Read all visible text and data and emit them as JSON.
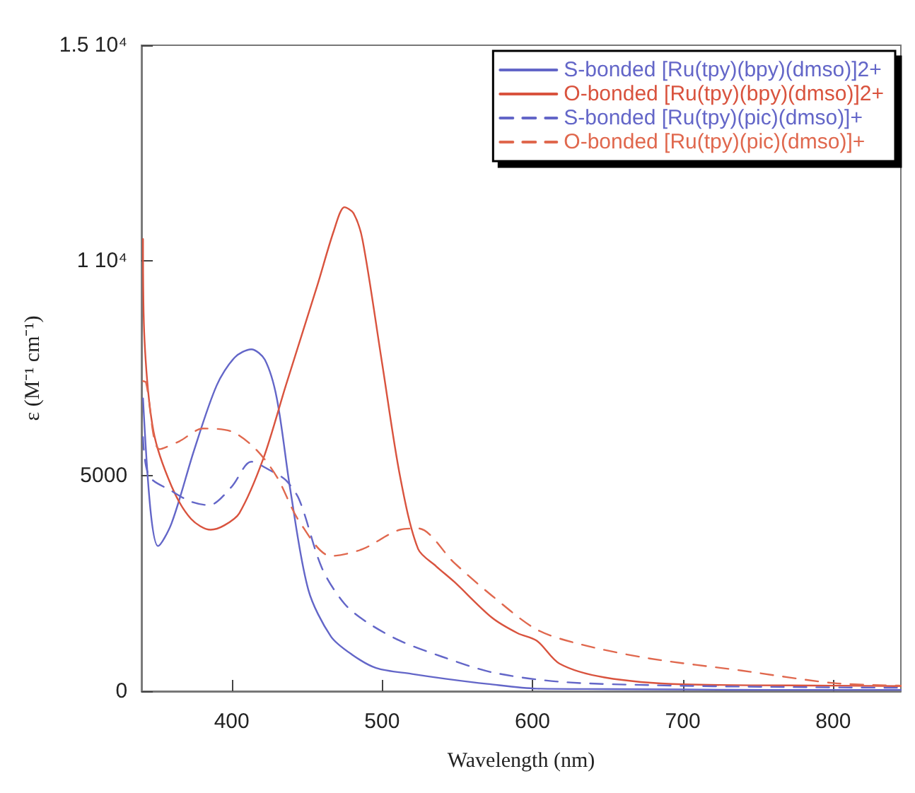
{
  "chart_data": {
    "type": "line",
    "xlabel": "Wavelength (nm)",
    "ylabel": "ε (M⁻¹ cm⁻¹)",
    "xlim": [
      340,
      845
    ],
    "ylim": [
      0,
      15000
    ],
    "xticks": [
      400,
      500,
      600,
      700,
      800
    ],
    "yticks": [
      0,
      5000,
      {
        "value": 10000,
        "label": "1 10⁴"
      },
      {
        "value": 15000,
        "label": "1.5 10⁴"
      }
    ],
    "grid": false,
    "legend": "top right",
    "marker": "none",
    "series": [
      {
        "name": "S-bonded [Ru(tpy)(bpy)(dmso)]2+",
        "color": "#6366c8",
        "line_style": "solid",
        "x": [
          341,
          346,
          351,
          360,
          375,
          390,
          402,
          413,
          422,
          430,
          439,
          451,
          466,
          480,
          496,
          520,
          542,
          570,
          603,
          650,
          700,
          760,
          845
        ],
        "values": [
          6800,
          4200,
          3370,
          3900,
          5600,
          7100,
          7750,
          7940,
          7700,
          6800,
          4670,
          2350,
          1270,
          850,
          540,
          400,
          290,
          170,
          60,
          50,
          40,
          30,
          30
        ]
      },
      {
        "name": "O-bonded [Ru(tpy)(bpy)(dmso)]2+",
        "color": "#d9533e",
        "line_style": "solid",
        "x": [
          341,
          342,
          348,
          360,
          373,
          386,
          395,
          405,
          421,
          436,
          457,
          468,
          475,
          481,
          487,
          500,
          512,
          524,
          536,
          548,
          573,
          590,
          603,
          618,
          648,
          700,
          800,
          845
        ],
        "values": [
          10500,
          8160,
          6030,
          4760,
          4000,
          3750,
          3850,
          4130,
          5400,
          7100,
          9430,
          10700,
          11240,
          11100,
          10480,
          7620,
          4980,
          3300,
          2900,
          2540,
          1710,
          1350,
          1170,
          640,
          320,
          160,
          130,
          120
        ]
      },
      {
        "name": "S-bonded [Ru(tpy)(pic)(dmso)]+",
        "color": "#6366c8",
        "line_style": "dashed",
        "x": [
          341,
          345,
          360,
          373,
          385,
          400,
          413,
          426,
          436,
          445,
          460,
          475,
          490,
          512,
          540,
          573,
          618,
          680,
          760,
          845
        ],
        "values": [
          5900,
          5000,
          4650,
          4400,
          4320,
          4750,
          5330,
          5120,
          4900,
          4440,
          2860,
          2030,
          1600,
          1170,
          800,
          440,
          220,
          140,
          100,
          80
        ]
      },
      {
        "name": "O-bonded [Ru(tpy)(pic)(dmso)]+",
        "color": "#e0684e",
        "line_style": "dashed",
        "x": [
          341,
          343,
          352,
          365,
          381,
          400,
          416,
          430,
          445,
          466,
          487,
          512,
          524,
          548,
          573,
          603,
          633,
          678,
          739,
          800,
          845
        ],
        "values": [
          7200,
          7170,
          5620,
          5800,
          6100,
          6030,
          5620,
          4980,
          3940,
          3140,
          3300,
          3750,
          3780,
          2980,
          2220,
          1430,
          1080,
          760,
          480,
          190,
          130
        ]
      }
    ]
  }
}
